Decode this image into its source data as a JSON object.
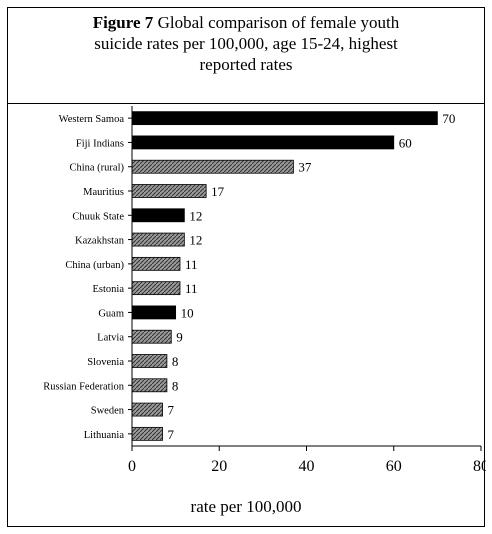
{
  "title": {
    "figure_label": "Figure 7",
    "line1": "Global comparison of female youth",
    "line2": "suicide rates per 100,000,  age 15-24, highest",
    "line3": "reported rates"
  },
  "colors": {
    "solid": "#000000",
    "hatched": "#7a7a7a"
  },
  "chart_data": {
    "type": "bar",
    "orientation": "horizontal",
    "title": "Figure 7 Global comparison of female youth suicide rates per 100,000, age 15-24, highest reported rates",
    "xlabel": "rate per 100,000",
    "ylabel": "",
    "xlim": [
      0,
      80
    ],
    "xticks": [
      0,
      20,
      40,
      60,
      80
    ],
    "grid": false,
    "categories": [
      "Western Samoa",
      "Fiji Indians",
      "China (rural)",
      "Mauritius",
      "Chuuk State",
      "Kazakhstan",
      "China (urban)",
      "Estonia",
      "Guam",
      "Latvia",
      "Slovenia",
      "Russian Federation",
      "Sweden",
      "Lithuania"
    ],
    "values": [
      70,
      60,
      37,
      17,
      12,
      12,
      11,
      11,
      10,
      9,
      8,
      8,
      7,
      7
    ],
    "fill_style": [
      "solid",
      "solid",
      "hatched",
      "hatched",
      "solid",
      "hatched",
      "hatched",
      "hatched",
      "solid",
      "hatched",
      "hatched",
      "hatched",
      "hatched",
      "hatched"
    ]
  }
}
